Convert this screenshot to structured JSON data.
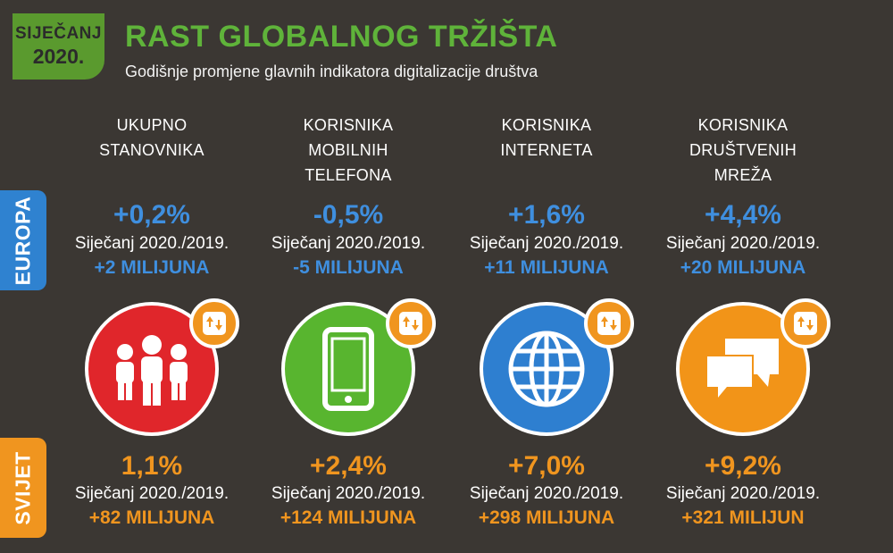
{
  "badge": {
    "month": "SIJEČANJ",
    "year": "2020."
  },
  "header": {
    "title": "RAST GLOBALNOG TRŽIŠTA",
    "subtitle": "Godišnje promjene glavnih indikatora digitalizacije društva"
  },
  "side_labels": {
    "europe": "EUROPA",
    "world": "SVIJET"
  },
  "colors": {
    "background": "#3b3733",
    "europe": "#2f82d0",
    "world": "#f0951f",
    "title": "#5fb33a"
  },
  "period": "Siječanj 2020./2019.",
  "columns": [
    {
      "label_lines": [
        "UKUPNO",
        "STANOVNIKA"
      ],
      "icon": "people-icon",
      "color": "#e0262b",
      "europe": {
        "pct": "+0,2%",
        "period": "Siječanj 2020./2019.",
        "abs": "+2 MILIJUNA"
      },
      "world": {
        "pct": "1,1%",
        "period": "Siječanj 2020./2019.",
        "abs": "+82 MILIJUNA"
      }
    },
    {
      "label_lines": [
        "KORISNIKA",
        "MOBILNIH",
        "TELEFONA"
      ],
      "icon": "mobile-phone-icon",
      "color": "#58b52f",
      "europe": {
        "pct": "-0,5%",
        "period": "Siječanj 2020./2019.",
        "abs": "-5 MILIJUNA"
      },
      "world": {
        "pct": "+2,4%",
        "period": "Siječanj 2020./2019.",
        "abs": "+124 MILIJUNA"
      }
    },
    {
      "label_lines": [
        "KORISNIKA",
        "INTERNETA"
      ],
      "icon": "globe-icon",
      "color": "#2e7fd0",
      "europe": {
        "pct": "+1,6%",
        "period": "Siječanj 2020./2019.",
        "abs": "+11 MILIJUNA"
      },
      "world": {
        "pct": "+7,0%",
        "period": "Siječanj 2020./2019.",
        "abs": "+298 MILIJUNA"
      }
    },
    {
      "label_lines": [
        "KORISNIKA",
        "DRUŠTVENIH",
        "MREŽA"
      ],
      "icon": "chat-bubbles-icon",
      "color": "#f29418",
      "europe": {
        "pct": "+4,4%",
        "period": "Siječanj 2020./2019.",
        "abs": "+20 MILIJUNA"
      },
      "world": {
        "pct": "+9,2%",
        "period": "Siječanj 2020./2019.",
        "abs": "+321 MILIJUN"
      }
    }
  ]
}
